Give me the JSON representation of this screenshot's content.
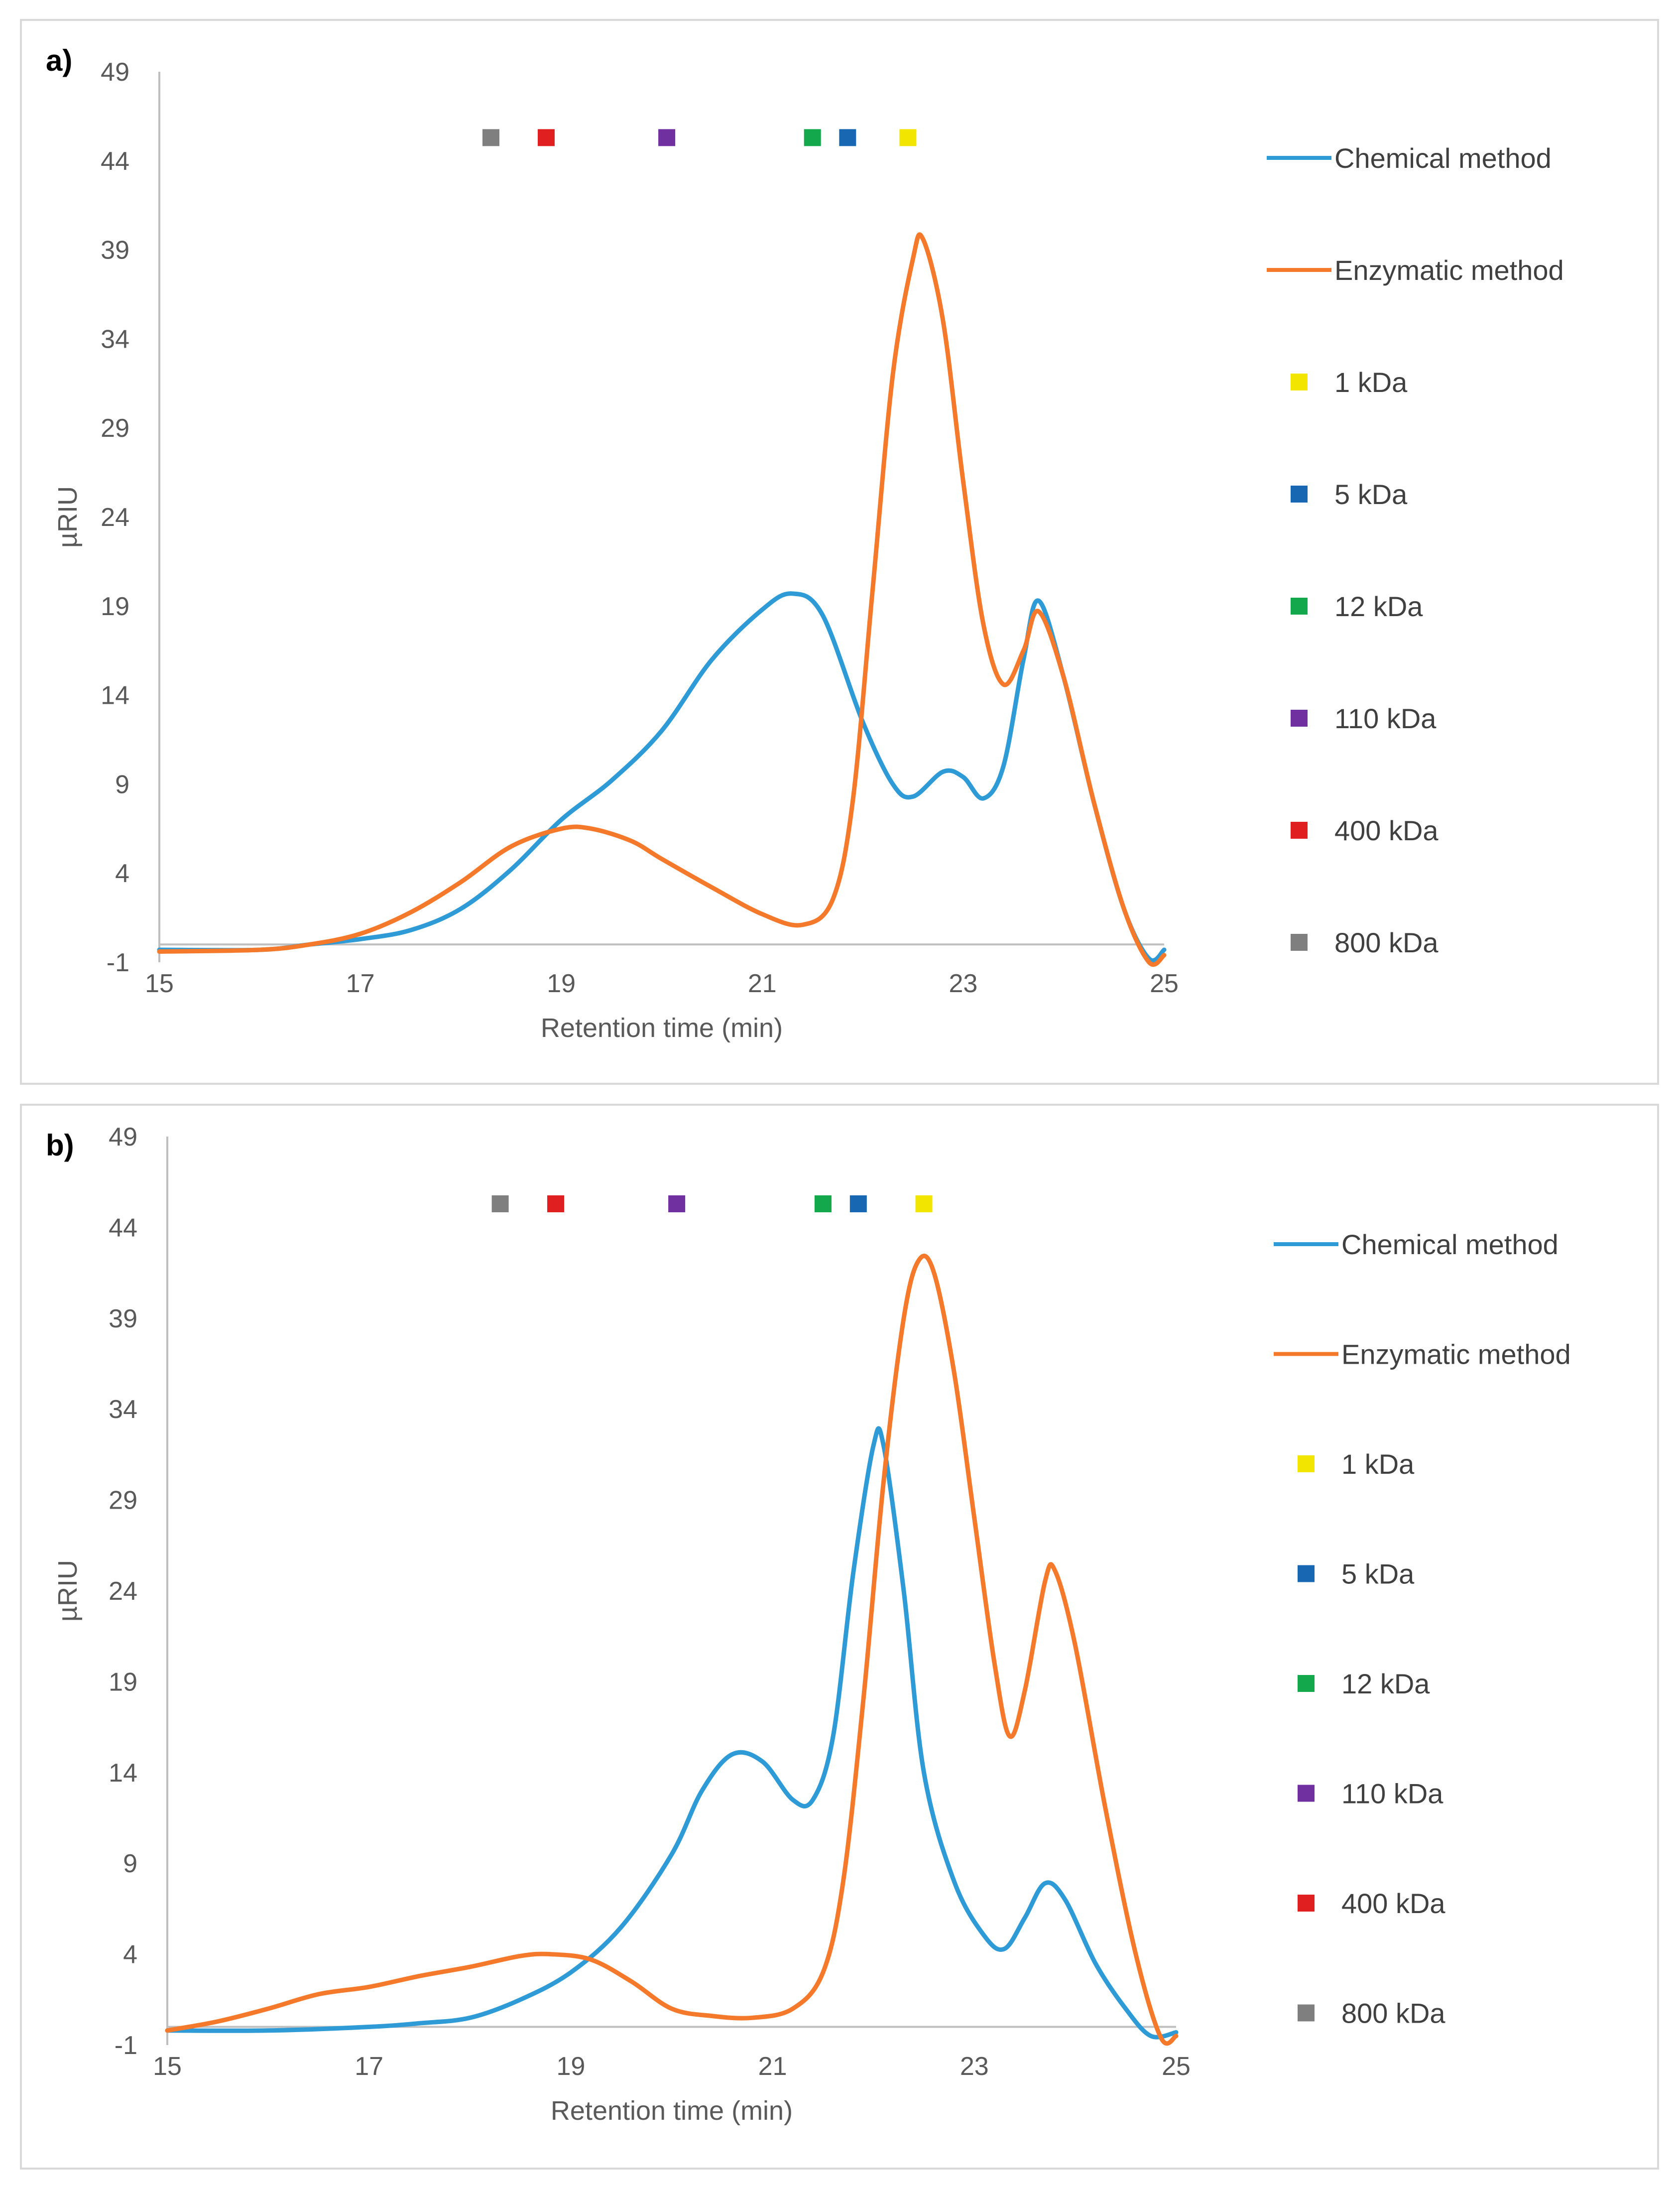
{
  "chart_data": [
    {
      "type": "line",
      "panel_label": "a)",
      "xlabel": "Retention time (min)",
      "ylabel": "µRIU",
      "xlim": [
        15,
        25
      ],
      "ylim": [
        -1,
        49
      ],
      "x_ticks": [
        15,
        17,
        19,
        21,
        23,
        25
      ],
      "y_ticks": [
        -1,
        4,
        9,
        14,
        19,
        24,
        29,
        34,
        39,
        44,
        49
      ],
      "legend_position": "right",
      "series": [
        {
          "name": "Chemical method",
          "color": "#2E9BD6",
          "points": [
            [
              15,
              -0.3
            ],
            [
              16,
              -0.3
            ],
            [
              16.5,
              0
            ],
            [
              17,
              0.3
            ],
            [
              17.5,
              0.8
            ],
            [
              18,
              2
            ],
            [
              18.5,
              4.2
            ],
            [
              19,
              7
            ],
            [
              19.5,
              9.2
            ],
            [
              20,
              12
            ],
            [
              20.5,
              16
            ],
            [
              21,
              18.8
            ],
            [
              21.3,
              19.7
            ],
            [
              21.6,
              18.5
            ],
            [
              22,
              12.5
            ],
            [
              22.3,
              9
            ],
            [
              22.5,
              8.3
            ],
            [
              22.8,
              9.7
            ],
            [
              23,
              9.4
            ],
            [
              23.2,
              8.2
            ],
            [
              23.4,
              10
            ],
            [
              23.6,
              16
            ],
            [
              23.75,
              19.3
            ],
            [
              24,
              15
            ],
            [
              24.3,
              8
            ],
            [
              24.6,
              2
            ],
            [
              24.85,
              -0.8
            ],
            [
              25,
              -0.3
            ]
          ]
        },
        {
          "name": "Enzymatic method",
          "color": "#F4792A",
          "points": [
            [
              15,
              -0.4
            ],
            [
              16,
              -0.3
            ],
            [
              16.5,
              0
            ],
            [
              17,
              0.6
            ],
            [
              17.5,
              1.8
            ],
            [
              18,
              3.5
            ],
            [
              18.5,
              5.5
            ],
            [
              19,
              6.5
            ],
            [
              19.3,
              6.5
            ],
            [
              19.7,
              5.8
            ],
            [
              20,
              4.8
            ],
            [
              20.5,
              3.2
            ],
            [
              21,
              1.7
            ],
            [
              21.4,
              1.1
            ],
            [
              21.7,
              2.5
            ],
            [
              21.9,
              8
            ],
            [
              22.1,
              20
            ],
            [
              22.3,
              32
            ],
            [
              22.5,
              38.5
            ],
            [
              22.6,
              39.6
            ],
            [
              22.8,
              35
            ],
            [
              23,
              26
            ],
            [
              23.2,
              18
            ],
            [
              23.4,
              14.6
            ],
            [
              23.6,
              16.5
            ],
            [
              23.75,
              18.7
            ],
            [
              24,
              15
            ],
            [
              24.3,
              8
            ],
            [
              24.6,
              2
            ],
            [
              24.85,
              -1
            ],
            [
              25,
              -0.6
            ]
          ]
        }
      ],
      "markers": [
        {
          "name": "1 kDa",
          "x": 22.45,
          "y": 45.3,
          "color": "#F2E600"
        },
        {
          "name": "5 kDa",
          "x": 21.85,
          "y": 45.3,
          "color": "#1767B3"
        },
        {
          "name": "12 kDa",
          "x": 21.5,
          "y": 45.3,
          "color": "#12A84B"
        },
        {
          "name": "110 kDa",
          "x": 20.05,
          "y": 45.3,
          "color": "#7030A0"
        },
        {
          "name": "400 kDa",
          "x": 18.85,
          "y": 45.3,
          "color": "#E02020"
        },
        {
          "name": "800 kDa",
          "x": 18.3,
          "y": 45.3,
          "color": "#7F7F7F"
        }
      ]
    },
    {
      "type": "line",
      "panel_label": "b)",
      "xlabel": "Retention time (min)",
      "ylabel": "µRIU",
      "xlim": [
        15,
        25
      ],
      "ylim": [
        -1,
        49
      ],
      "x_ticks": [
        15,
        17,
        19,
        21,
        23,
        25
      ],
      "y_ticks": [
        -1,
        4,
        9,
        14,
        19,
        24,
        29,
        34,
        39,
        44,
        49
      ],
      "legend_position": "right",
      "series": [
        {
          "name": "Chemical method",
          "color": "#2E9BD6",
          "points": [
            [
              15,
              -0.2
            ],
            [
              16,
              -0.2
            ],
            [
              17,
              0
            ],
            [
              17.5,
              0.2
            ],
            [
              18,
              0.5
            ],
            [
              18.5,
              1.5
            ],
            [
              19,
              3
            ],
            [
              19.5,
              5.5
            ],
            [
              20,
              9.5
            ],
            [
              20.3,
              13
            ],
            [
              20.6,
              15
            ],
            [
              20.9,
              14.6
            ],
            [
              21.2,
              12.5
            ],
            [
              21.4,
              12.5
            ],
            [
              21.6,
              16
            ],
            [
              21.8,
              25
            ],
            [
              22,
              32
            ],
            [
              22.1,
              32
            ],
            [
              22.3,
              24
            ],
            [
              22.5,
              14
            ],
            [
              22.8,
              8
            ],
            [
              23.1,
              5
            ],
            [
              23.3,
              4.3
            ],
            [
              23.5,
              6
            ],
            [
              23.7,
              7.9
            ],
            [
              23.9,
              7
            ],
            [
              24.2,
              3.5
            ],
            [
              24.5,
              1
            ],
            [
              24.75,
              -0.5
            ],
            [
              25,
              -0.3
            ]
          ]
        },
        {
          "name": "Enzymatic method",
          "color": "#F4792A",
          "points": [
            [
              15,
              -0.2
            ],
            [
              15.5,
              0.3
            ],
            [
              16,
              1
            ],
            [
              16.5,
              1.8
            ],
            [
              17,
              2.2
            ],
            [
              17.5,
              2.8
            ],
            [
              18,
              3.3
            ],
            [
              18.5,
              3.9
            ],
            [
              18.8,
              4
            ],
            [
              19.2,
              3.7
            ],
            [
              19.6,
              2.5
            ],
            [
              20,
              1
            ],
            [
              20.4,
              0.6
            ],
            [
              20.8,
              0.5
            ],
            [
              21.2,
              1
            ],
            [
              21.5,
              3
            ],
            [
              21.7,
              8
            ],
            [
              21.9,
              18
            ],
            [
              22.1,
              30
            ],
            [
              22.3,
              39
            ],
            [
              22.45,
              42.2
            ],
            [
              22.6,
              41.5
            ],
            [
              22.8,
              36
            ],
            [
              23,
              28
            ],
            [
              23.2,
              20
            ],
            [
              23.35,
              16
            ],
            [
              23.5,
              18.5
            ],
            [
              23.7,
              24.5
            ],
            [
              23.8,
              25.1
            ],
            [
              24,
              21
            ],
            [
              24.3,
              12
            ],
            [
              24.6,
              4
            ],
            [
              24.85,
              -0.6
            ],
            [
              25,
              -0.5
            ]
          ]
        }
      ],
      "markers": [
        {
          "name": "1 kDa",
          "x": 22.5,
          "y": 45.3,
          "color": "#F2E600"
        },
        {
          "name": "5 kDa",
          "x": 21.85,
          "y": 45.3,
          "color": "#1767B3"
        },
        {
          "name": "12 kDa",
          "x": 21.5,
          "y": 45.3,
          "color": "#12A84B"
        },
        {
          "name": "110 kDa",
          "x": 20.05,
          "y": 45.3,
          "color": "#7030A0"
        },
        {
          "name": "400 kDa",
          "x": 18.85,
          "y": 45.3,
          "color": "#E02020"
        },
        {
          "name": "800 kDa",
          "x": 18.3,
          "y": 45.3,
          "color": "#7F7F7F"
        }
      ]
    }
  ]
}
